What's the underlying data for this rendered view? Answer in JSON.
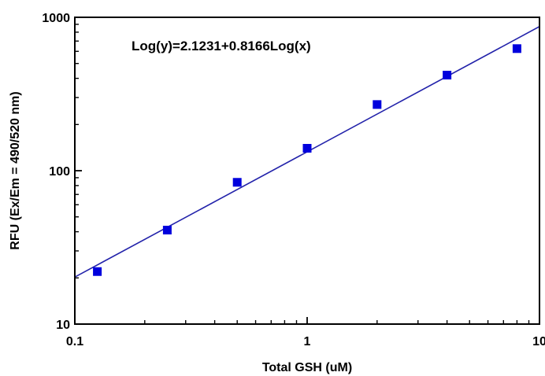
{
  "chart_data": {
    "type": "scatter",
    "title": "",
    "xlabel": "Total GSH (uM)",
    "ylabel": "RFU (Ex/Em = 490/520 nm)",
    "xscale": "log",
    "yscale": "log",
    "xlim": [
      0.1,
      10
    ],
    "ylim": [
      10,
      1000
    ],
    "x_ticks": [
      0.1,
      1,
      10
    ],
    "x_tick_labels": [
      "0.1",
      "1",
      "10"
    ],
    "y_ticks": [
      10,
      100,
      1000
    ],
    "y_tick_labels": [
      "10",
      "100",
      "1000"
    ],
    "grid": false,
    "legend": "none",
    "series": [
      {
        "type": "scatter",
        "marker": "square",
        "color": "#0000dd",
        "x": [
          0.125,
          0.25,
          0.5,
          1,
          2,
          4,
          8
        ],
        "y": [
          22,
          41,
          84,
          140,
          270,
          420,
          625
        ]
      }
    ],
    "fit": {
      "type": "line",
      "color": "#2222aa",
      "intercept": 2.1231,
      "slope": 0.8166,
      "equation_label": "Log(y)=2.1231+0.8166Log(x)"
    }
  }
}
